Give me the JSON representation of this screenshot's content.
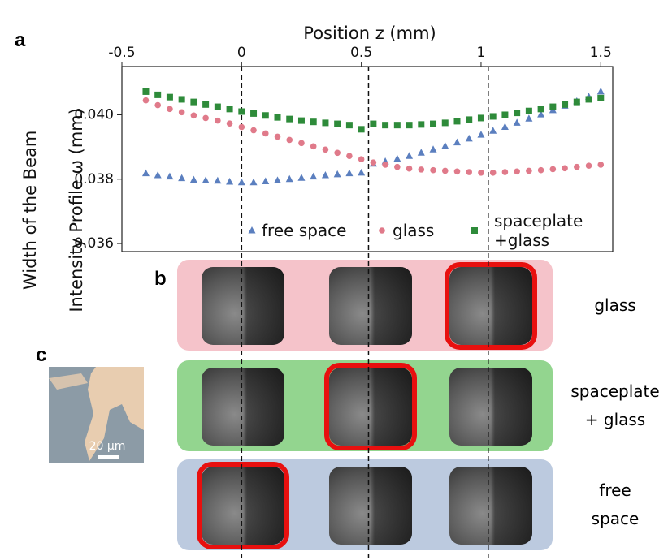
{
  "chart_data": {
    "type": "scatter",
    "panel_label": "a",
    "xlabel": "Position z (mm)",
    "ylabel": [
      "Width of the Beam",
      "Intensity Profile ω (mm)"
    ],
    "xlim": [
      -0.5,
      1.55
    ],
    "ylim": [
      0.03575,
      0.0415
    ],
    "xticks": [
      -0.5,
      0,
      0.5,
      1,
      1.5
    ],
    "yticks": [
      {
        "value": 0.04,
        "label": "0.040"
      },
      {
        "value": 0.038,
        "label": "0.038"
      },
      {
        "value": 0.036,
        "label": "0.036"
      }
    ],
    "vlines": [
      0,
      0.53,
      1.03
    ],
    "x": [
      -0.4,
      -0.35,
      -0.3,
      -0.25,
      -0.2,
      -0.15,
      -0.1,
      -0.05,
      0,
      0.05,
      0.1,
      0.15,
      0.2,
      0.25,
      0.3,
      0.35,
      0.4,
      0.45,
      0.5,
      0.55,
      0.6,
      0.65,
      0.7,
      0.75,
      0.8,
      0.85,
      0.9,
      0.95,
      1.0,
      1.05,
      1.1,
      1.15,
      1.2,
      1.25,
      1.3,
      1.35,
      1.4,
      1.45,
      1.5
    ],
    "series": [
      {
        "name": "free space",
        "color": "#5b7fbf",
        "marker": "triangle",
        "values": [
          0.03818,
          0.03812,
          0.03808,
          0.03803,
          0.03798,
          0.03796,
          0.03795,
          0.03792,
          0.0379,
          0.0379,
          0.03793,
          0.03796,
          0.038,
          0.03804,
          0.03808,
          0.03812,
          0.03815,
          0.03818,
          0.0382,
          0.03848,
          0.03855,
          0.03863,
          0.03872,
          0.03882,
          0.03892,
          0.03903,
          0.03914,
          0.03926,
          0.03938,
          0.0395,
          0.03962,
          0.03975,
          0.03988,
          0.04001,
          0.04014,
          0.04028,
          0.04042,
          0.04056,
          0.04072
        ]
      },
      {
        "name": "glass",
        "color": "#e07a8a",
        "marker": "circle",
        "values": [
          0.04045,
          0.0403,
          0.04018,
          0.04008,
          0.03998,
          0.0399,
          0.03982,
          0.03973,
          0.03962,
          0.03952,
          0.03942,
          0.03932,
          0.03922,
          0.03912,
          0.03902,
          0.03892,
          0.03882,
          0.03872,
          0.03862,
          0.03852,
          0.03845,
          0.03838,
          0.03833,
          0.0383,
          0.03828,
          0.03826,
          0.03824,
          0.03822,
          0.0382,
          0.0382,
          0.03822,
          0.03824,
          0.03826,
          0.03828,
          0.03831,
          0.03834,
          0.03838,
          0.03842,
          0.03845
        ]
      },
      {
        "name": "spaceplate\n+glass",
        "color": "#2e8b3a",
        "marker": "square",
        "values": [
          0.04072,
          0.04062,
          0.04055,
          0.04048,
          0.0404,
          0.04032,
          0.04025,
          0.04018,
          0.0401,
          0.04004,
          0.03998,
          0.03992,
          0.03987,
          0.03982,
          0.03978,
          0.03975,
          0.03972,
          0.03968,
          0.03955,
          0.03972,
          0.03968,
          0.03968,
          0.03968,
          0.0397,
          0.03972,
          0.03975,
          0.0398,
          0.03985,
          0.0399,
          0.03995,
          0.04,
          0.04006,
          0.04012,
          0.04018,
          0.04025,
          0.04032,
          0.0404,
          0.04048,
          0.04052
        ]
      }
    ]
  },
  "panel_b": {
    "label": "b",
    "rows": [
      {
        "name": "glass",
        "color": "#f5c3ca",
        "focus": 3
      },
      {
        "name": "spaceplate\n+ glass",
        "color": "#93d58f",
        "focus": 2
      },
      {
        "name": "free\nspace",
        "color": "#bccadf",
        "focus": 1
      }
    ]
  },
  "panel_c": {
    "label": "c",
    "scale_bar": "20 μm"
  }
}
